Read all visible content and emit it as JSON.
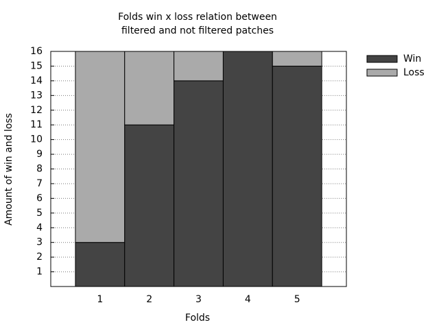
{
  "chart_data": {
    "type": "stacked-bar",
    "title": [
      "Folds win x loss relation between",
      "filtered and not filtered patches"
    ],
    "x_label": "Folds",
    "y_label": "Amount of win and loss",
    "categories": [
      "1",
      "2",
      "3",
      "4",
      "5"
    ],
    "series": [
      {
        "name": "Win",
        "color": "#444444",
        "values": [
          3,
          11,
          14,
          16,
          15
        ]
      },
      {
        "name": "Loss",
        "color": "#aaaaaa",
        "values": [
          13,
          5,
          2,
          0,
          1
        ]
      }
    ],
    "ylim": [
      0,
      16
    ],
    "yticks": [
      1,
      2,
      3,
      4,
      5,
      6,
      7,
      8,
      9,
      10,
      11,
      12,
      13,
      14,
      15,
      16
    ],
    "grid": true,
    "legend": "outside-right"
  }
}
